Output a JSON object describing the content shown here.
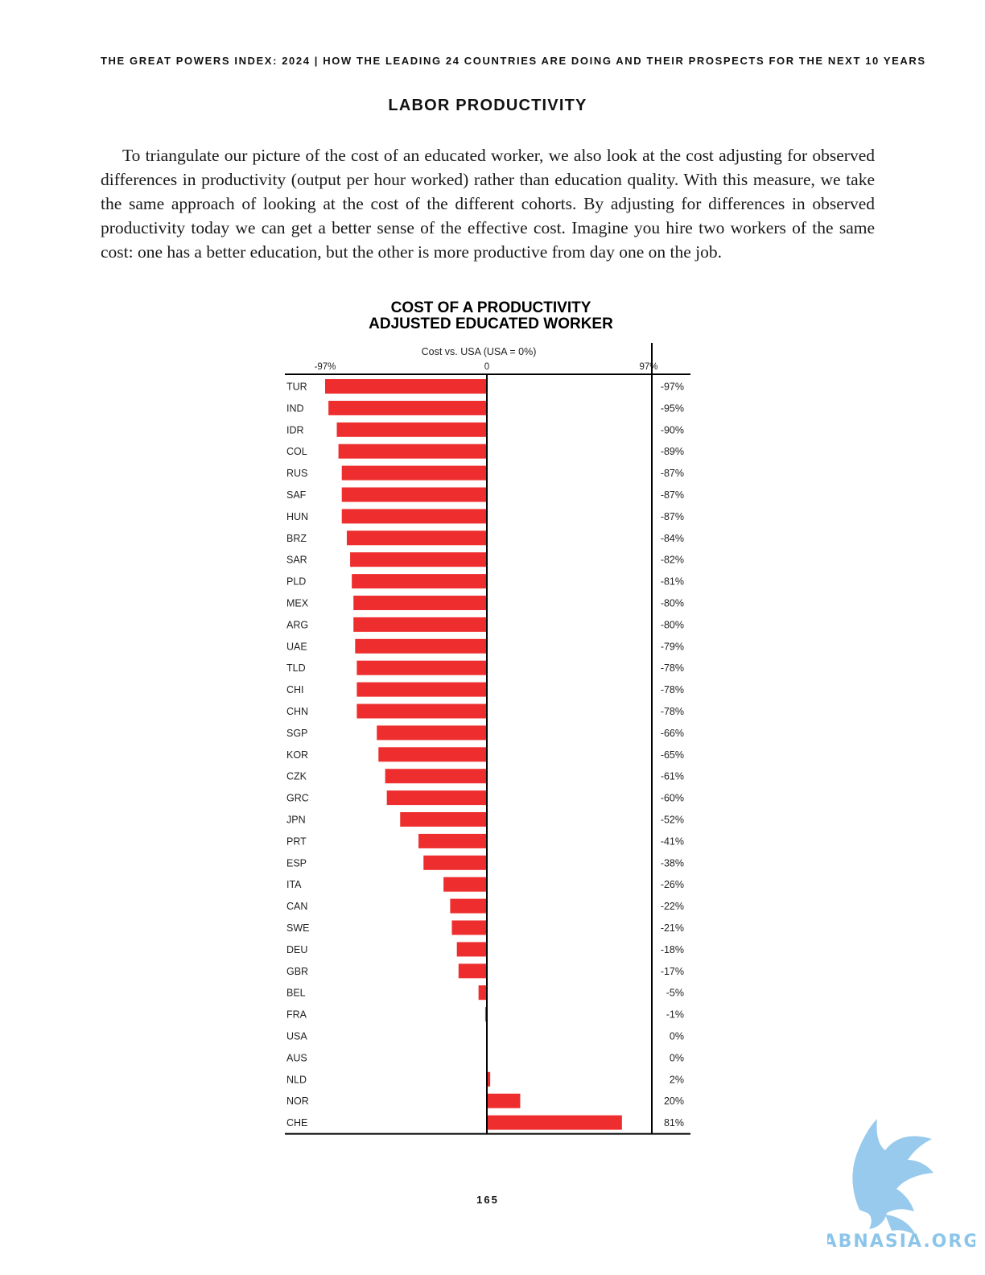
{
  "page": {
    "running_head": "THE GREAT POWERS INDEX: 2024 | HOW THE LEADING 24 COUNTRIES ARE DOING AND THEIR PROSPECTS FOR THE NEXT 10 YEARS",
    "section_title": "LABOR PRODUCTIVITY",
    "paragraph": "To triangulate our picture of the cost of an educated worker, we also look at the cost adjusting for observed differences in productivity (output per hour worked) rather than education quality. With this measure, we take the same approach of looking at the cost of the different cohorts. By adjusting for differences in observed productivity today we can get a better sense of the effective cost. Imagine you hire two workers of the same cost: one has a better education, but the other is more productive from day one on the job.",
    "page_number": "165",
    "watermark_text": "ABNASIA.ORG"
  },
  "colors": {
    "bar": "#ee2e2e",
    "axis": "#000000",
    "text": "#1a1a1a",
    "watermark": "#8cc5ea"
  },
  "chart_data": {
    "type": "bar",
    "orientation": "horizontal",
    "title_line1": "COST OF A PRODUCTIVITY",
    "title_line2": "ADJUSTED EDUCATED WORKER",
    "axis_label": "Cost vs. USA (USA = 0%)",
    "tick_labels": [
      "-97%",
      "0",
      "97%"
    ],
    "tick_values": [
      -97,
      0,
      97
    ],
    "xlim": [
      -97,
      97
    ],
    "categories": [
      "TUR",
      "IND",
      "IDR",
      "COL",
      "RUS",
      "SAF",
      "HUN",
      "BRZ",
      "SAR",
      "PLD",
      "MEX",
      "ARG",
      "UAE",
      "TLD",
      "CHI",
      "CHN",
      "SGP",
      "KOR",
      "CZK",
      "GRC",
      "JPN",
      "PRT",
      "ESP",
      "ITA",
      "CAN",
      "SWE",
      "DEU",
      "GBR",
      "BEL",
      "FRA",
      "USA",
      "AUS",
      "NLD",
      "NOR",
      "CHE"
    ],
    "values": [
      -97,
      -95,
      -90,
      -89,
      -87,
      -87,
      -87,
      -84,
      -82,
      -81,
      -80,
      -80,
      -79,
      -78,
      -78,
      -78,
      -66,
      -65,
      -61,
      -60,
      -52,
      -41,
      -38,
      -26,
      -22,
      -21,
      -18,
      -17,
      -5,
      -1,
      0,
      0,
      2,
      20,
      81
    ],
    "value_labels": [
      "-97%",
      "-95%",
      "-90%",
      "-89%",
      "-87%",
      "-87%",
      "-87%",
      "-84%",
      "-82%",
      "-81%",
      "-80%",
      "-80%",
      "-79%",
      "-78%",
      "-78%",
      "-78%",
      "-66%",
      "-65%",
      "-61%",
      "-60%",
      "-52%",
      "-41%",
      "-38%",
      "-26%",
      "-22%",
      "-21%",
      "-18%",
      "-17%",
      "-5%",
      "-1%",
      "0%",
      "0%",
      "2%",
      "20%",
      "81%"
    ]
  }
}
